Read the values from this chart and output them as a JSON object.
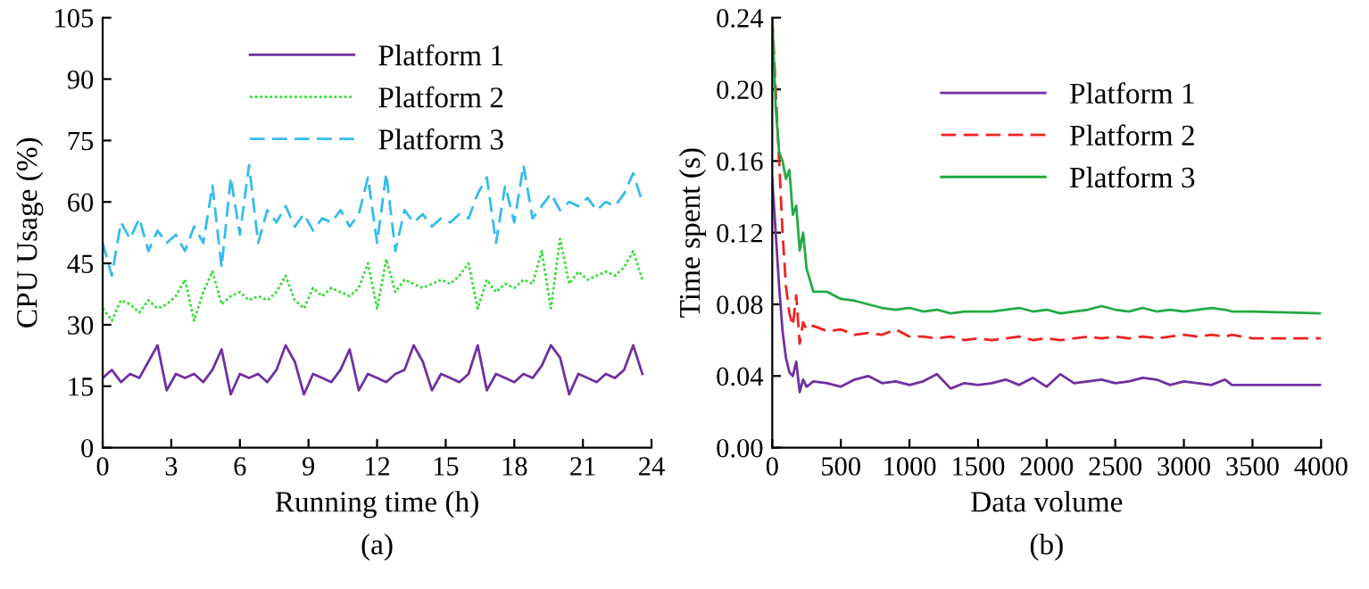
{
  "chart_data": [
    {
      "type": "line",
      "xlabel": "Running time (h)",
      "ylabel": "CPU Usage (%)",
      "annotations": [
        "(a)"
      ],
      "x": [
        0,
        0.4,
        0.8,
        1.2,
        1.6,
        2.0,
        2.4,
        2.8,
        3.2,
        3.6,
        4.0,
        4.4,
        4.8,
        5.2,
        5.6,
        6.0,
        6.4,
        6.8,
        7.2,
        7.6,
        8.0,
        8.4,
        8.8,
        9.2,
        9.6,
        10.0,
        10.4,
        10.8,
        11.2,
        11.6,
        12.0,
        12.4,
        12.8,
        13.2,
        13.6,
        14.0,
        14.4,
        14.8,
        15.2,
        15.6,
        16.0,
        16.4,
        16.8,
        17.2,
        17.6,
        18.0,
        18.4,
        18.8,
        19.2,
        19.6,
        20.0,
        20.4,
        20.8,
        21.2,
        21.6,
        22.0,
        22.4,
        22.8,
        23.2,
        23.6
      ],
      "series": [
        {
          "name": "Platform 1",
          "color": "#7030a0",
          "line_style": "solid",
          "values": [
            17,
            19,
            16,
            18,
            17,
            21,
            25,
            14,
            18,
            17,
            18,
            16,
            19,
            24,
            13,
            18,
            17,
            18,
            16,
            19,
            25,
            21,
            13,
            18,
            17,
            16,
            19,
            24,
            14,
            18,
            17,
            16,
            18,
            19,
            25,
            21,
            14,
            18,
            17,
            16,
            18,
            25,
            14,
            18,
            17,
            16,
            18,
            17,
            20,
            25,
            22,
            13,
            18,
            17,
            16,
            18,
            17,
            19,
            25,
            18
          ]
        },
        {
          "name": "Platform 2",
          "color": "#33dd33",
          "line_style": "dotted",
          "values": [
            34,
            31,
            36,
            35,
            33,
            36,
            34,
            35,
            37,
            41,
            31,
            38,
            43,
            35,
            37,
            38,
            36,
            37,
            36,
            38,
            42,
            36,
            34,
            39,
            37,
            39,
            38,
            37,
            39,
            45,
            34,
            46,
            38,
            41,
            40,
            39,
            40,
            41,
            40,
            42,
            45,
            34,
            41,
            38,
            40,
            39,
            41,
            40,
            48,
            34,
            51,
            40,
            43,
            41,
            42,
            43,
            42,
            44,
            48,
            41
          ]
        },
        {
          "name": "Platform 3",
          "color": "#33bbee",
          "line_style": "dashed",
          "values": [
            50,
            42,
            55,
            51,
            56,
            48,
            53,
            50,
            52,
            48,
            54,
            50,
            64,
            44,
            66,
            52,
            69,
            50,
            58,
            55,
            59,
            54,
            57,
            53,
            56,
            55,
            58,
            54,
            57,
            66,
            50,
            67,
            48,
            58,
            55,
            57,
            54,
            56,
            55,
            57,
            56,
            62,
            66,
            50,
            64,
            55,
            69,
            56,
            59,
            62,
            58,
            60,
            59,
            61,
            58,
            60,
            59,
            62,
            67,
            60
          ]
        }
      ],
      "xlim": [
        0,
        24
      ],
      "xticks": [
        0,
        3,
        6,
        9,
        12,
        15,
        18,
        21,
        24
      ],
      "ylim": [
        0,
        105
      ],
      "yticks": [
        0,
        15,
        30,
        45,
        60,
        75,
        90,
        105
      ],
      "legend": "top"
    },
    {
      "type": "line",
      "xlabel": "Data volume",
      "ylabel": "Time spent (s)",
      "annotations": [
        "(b)"
      ],
      "x": [
        0,
        25,
        50,
        75,
        100,
        125,
        150,
        175,
        200,
        225,
        250,
        300,
        400,
        500,
        600,
        700,
        800,
        900,
        1000,
        1100,
        1200,
        1300,
        1400,
        1500,
        1600,
        1700,
        1800,
        1900,
        2000,
        2100,
        2200,
        2300,
        2400,
        2500,
        2600,
        2700,
        2800,
        2900,
        3000,
        3100,
        3200,
        3300,
        3350,
        3500,
        4000
      ],
      "series": [
        {
          "name": "Platform 1",
          "color": "#7030a0",
          "line_style": "solid",
          "values": [
            0.15,
            0.12,
            0.09,
            0.065,
            0.05,
            0.042,
            0.04,
            0.048,
            0.031,
            0.038,
            0.034,
            0.037,
            0.036,
            0.034,
            0.038,
            0.04,
            0.036,
            0.037,
            0.035,
            0.037,
            0.041,
            0.033,
            0.036,
            0.035,
            0.036,
            0.038,
            0.035,
            0.039,
            0.034,
            0.041,
            0.036,
            0.037,
            0.038,
            0.036,
            0.037,
            0.039,
            0.038,
            0.035,
            0.037,
            0.036,
            0.035,
            0.038,
            0.035,
            0.035,
            0.035
          ]
        },
        {
          "name": "Platform 2",
          "color": "#ee2222",
          "line_style": "dashed",
          "values": [
            0.24,
            0.2,
            0.16,
            0.12,
            0.09,
            0.075,
            0.068,
            0.085,
            0.058,
            0.07,
            0.066,
            0.068,
            0.065,
            0.066,
            0.063,
            0.064,
            0.063,
            0.066,
            0.062,
            0.062,
            0.061,
            0.062,
            0.06,
            0.061,
            0.06,
            0.061,
            0.062,
            0.06,
            0.061,
            0.06,
            0.061,
            0.062,
            0.061,
            0.062,
            0.061,
            0.062,
            0.061,
            0.062,
            0.063,
            0.062,
            0.063,
            0.062,
            0.063,
            0.061,
            0.061
          ]
        },
        {
          "name": "Platform 3",
          "color": "#22aa44",
          "line_style": "solid",
          "values": [
            0.24,
            0.19,
            0.165,
            0.16,
            0.15,
            0.155,
            0.13,
            0.135,
            0.11,
            0.12,
            0.1,
            0.087,
            0.087,
            0.083,
            0.082,
            0.08,
            0.078,
            0.077,
            0.078,
            0.076,
            0.077,
            0.075,
            0.076,
            0.076,
            0.076,
            0.077,
            0.078,
            0.076,
            0.077,
            0.075,
            0.076,
            0.077,
            0.079,
            0.077,
            0.076,
            0.078,
            0.076,
            0.077,
            0.076,
            0.077,
            0.078,
            0.077,
            0.076,
            0.076,
            0.075
          ]
        }
      ],
      "xlim": [
        0,
        4000
      ],
      "xticks": [
        0,
        500,
        1000,
        1500,
        2000,
        2500,
        3000,
        3500,
        4000
      ],
      "ylim": [
        0,
        0.24
      ],
      "yticks": [
        {
          "value": 0,
          "label": "0.00"
        },
        {
          "value": 0.04,
          "label": "0.04"
        },
        {
          "value": 0.08,
          "label": "0.08"
        },
        {
          "value": 0.12,
          "label": "0.12"
        },
        {
          "value": 0.16,
          "label": "0.16"
        },
        {
          "value": 0.2,
          "label": "0.20"
        },
        {
          "value": 0.24,
          "label": "0.24"
        }
      ],
      "legend": "right"
    }
  ]
}
